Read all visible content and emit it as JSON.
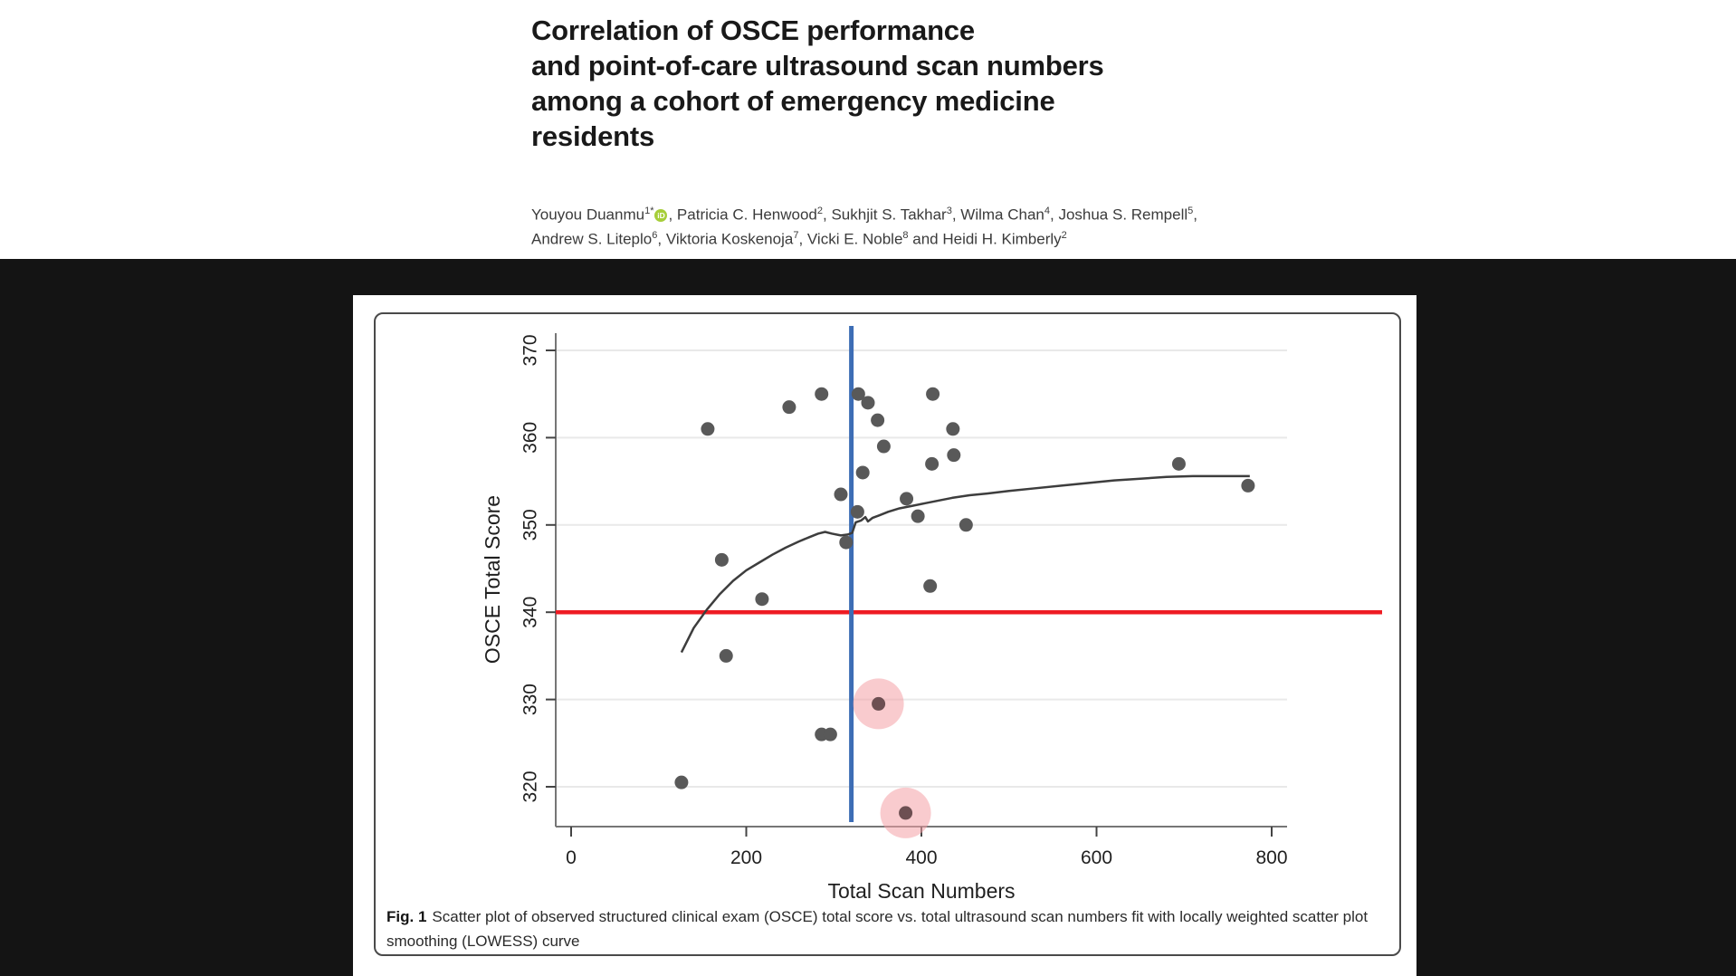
{
  "page": {
    "background": "#141414",
    "panel_color": "#ffffff"
  },
  "header": {
    "title_lines": [
      "Correlation of OSCE performance",
      "and point-of-care ultrasound scan numbers",
      "among a cohort of emergency medicine",
      "residents"
    ],
    "author_lines": [
      [
        {
          "text": "Youyou Duanmu",
          "sup": "1*",
          "orcid": true
        },
        {
          "text": ", Patricia C. Henwood",
          "sup": "2"
        },
        {
          "text": ", Sukhjit S. Takhar",
          "sup": "3"
        },
        {
          "text": ", Wilma Chan",
          "sup": "4"
        },
        {
          "text": ", Joshua S. Rempell",
          "sup": "5"
        },
        {
          "text": ","
        }
      ],
      [
        {
          "text": "Andrew S. Liteplo",
          "sup": "6"
        },
        {
          "text": ", Viktoria Koskenoja",
          "sup": "7"
        },
        {
          "text": ", Vicki E. Noble",
          "sup": "8"
        },
        {
          "text": " and Heidi H. Kimberly",
          "sup": "2"
        }
      ]
    ],
    "orcid_icon_label": "iD"
  },
  "figure": {
    "caption_runs": [
      {
        "text": "Fig. 1",
        "bold": true
      },
      {
        "text": "Scatter plot of observed structured clinical exam (OSCE) total score vs. total ultrasound scan numbers fit with locally weighted scatter plot smoothing (LOWESS) curve"
      }
    ]
  },
  "chart_data": {
    "type": "scatter",
    "title": "",
    "xlabel": "Total Scan Numbers",
    "ylabel": "OSCE Total Score",
    "xlim": [
      -18,
      818
    ],
    "ylim": [
      315.4,
      372
    ],
    "x_ticks": [
      0,
      200,
      400,
      600,
      800
    ],
    "y_ticks": [
      320,
      330,
      340,
      350,
      360,
      370
    ],
    "grid": "horizontal-only",
    "legend": "none",
    "colors": {
      "point": "#595959",
      "highlight_halo": "#f4a0a6",
      "highlight_point": "#6d4f52",
      "red_line": "#ee1c23",
      "blue_line": "#3d6db5",
      "lowess": "#3d3d3d",
      "gridline": "#e9e9e9",
      "axis": "#767676",
      "tick_label": "#1f1f1f"
    },
    "reference_lines": [
      {
        "orientation": "horizontal",
        "value": 340,
        "color": "#ee1c23"
      },
      {
        "orientation": "vertical",
        "value": 320,
        "color": "#3d6db5"
      }
    ],
    "points": [
      [
        126,
        320.5
      ],
      [
        156,
        361
      ],
      [
        172,
        346
      ],
      [
        177,
        335
      ],
      [
        218,
        341.5
      ],
      [
        249,
        363.5
      ],
      [
        286,
        365
      ],
      [
        286,
        326
      ],
      [
        296,
        326
      ],
      [
        308,
        353.5
      ],
      [
        314,
        348
      ],
      [
        327,
        351.5
      ],
      [
        328,
        365
      ],
      [
        333,
        356
      ],
      [
        339,
        364
      ],
      [
        350,
        362
      ],
      [
        357,
        359
      ],
      [
        383,
        353
      ],
      [
        396,
        351
      ],
      [
        410,
        343
      ],
      [
        412,
        357
      ],
      [
        413,
        365
      ],
      [
        436,
        361
      ],
      [
        437,
        358
      ],
      [
        451,
        350
      ],
      [
        694,
        357
      ],
      [
        773,
        354.5
      ]
    ],
    "highlighted_points": [
      [
        351,
        329.5
      ],
      [
        382,
        317
      ]
    ],
    "lowess_curve": [
      [
        126,
        335.4
      ],
      [
        140,
        338.2
      ],
      [
        155,
        340.3
      ],
      [
        170,
        342.1
      ],
      [
        185,
        343.6
      ],
      [
        200,
        344.8
      ],
      [
        215,
        345.7
      ],
      [
        230,
        346.6
      ],
      [
        245,
        347.4
      ],
      [
        260,
        348.1
      ],
      [
        272,
        348.6
      ],
      [
        282,
        349.0
      ],
      [
        290,
        349.2
      ],
      [
        298,
        349.0
      ],
      [
        308,
        348.8
      ],
      [
        316,
        348.9
      ],
      [
        321,
        349.1
      ],
      [
        325,
        350.3
      ],
      [
        331,
        350.5
      ],
      [
        336,
        350.9
      ],
      [
        339,
        350.4
      ],
      [
        344,
        350.8
      ],
      [
        352,
        351.1
      ],
      [
        362,
        351.5
      ],
      [
        375,
        351.9
      ],
      [
        390,
        352.2
      ],
      [
        405,
        352.5
      ],
      [
        420,
        352.8
      ],
      [
        435,
        353.1
      ],
      [
        455,
        353.4
      ],
      [
        475,
        353.6
      ],
      [
        500,
        353.9
      ],
      [
        530,
        354.2
      ],
      [
        560,
        354.5
      ],
      [
        590,
        354.8
      ],
      [
        620,
        355.1
      ],
      [
        650,
        355.3
      ],
      [
        680,
        355.5
      ],
      [
        710,
        355.6
      ],
      [
        740,
        355.6
      ],
      [
        775,
        355.6
      ]
    ]
  }
}
